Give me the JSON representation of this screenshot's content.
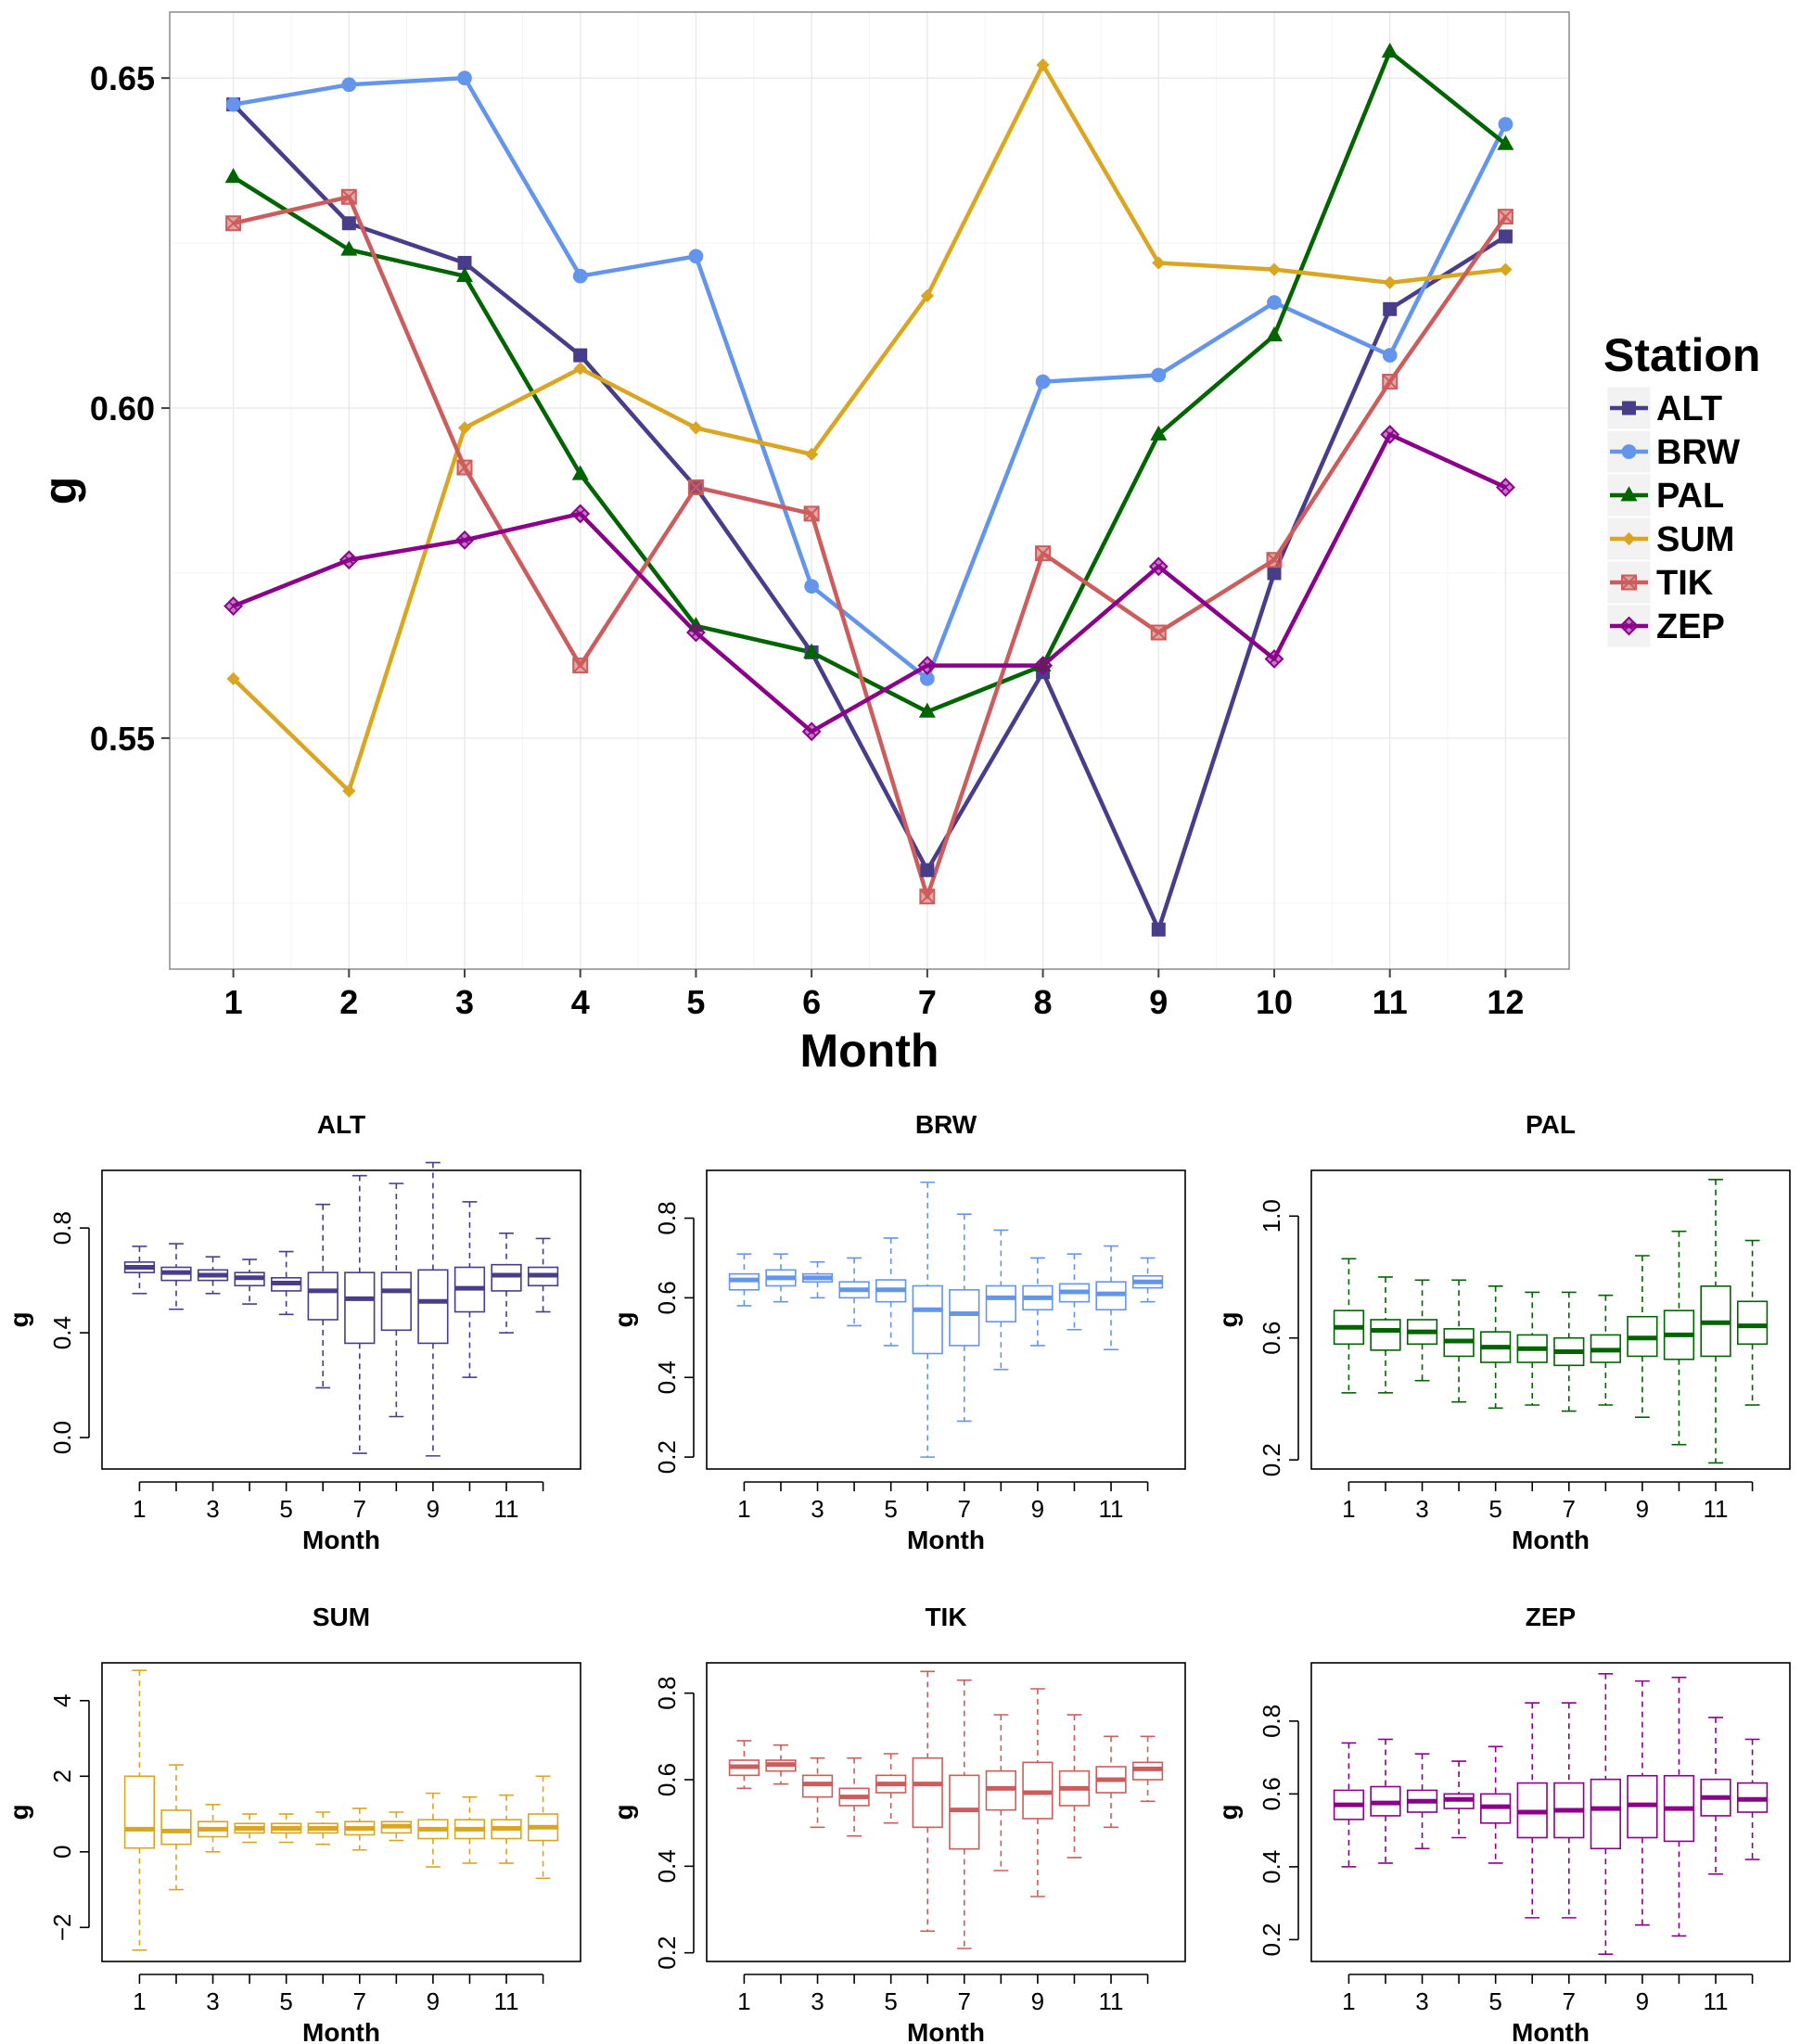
{
  "chart_data": [
    {
      "type": "line",
      "id": "main",
      "title": "",
      "xlabel": "Month",
      "ylabel": "g",
      "xlim": [
        0.45,
        12.55
      ],
      "ylim": [
        0.515,
        0.66
      ],
      "x_ticks": [
        1,
        2,
        3,
        4,
        5,
        6,
        7,
        8,
        9,
        10,
        11,
        12
      ],
      "y_ticks": [
        0.55,
        0.6,
        0.65
      ],
      "y_tick_labels": [
        "0.55",
        "0.60",
        "0.65"
      ],
      "grid": true,
      "legend": {
        "title": "Station",
        "position": "right"
      },
      "x": [
        1,
        2,
        3,
        4,
        5,
        6,
        7,
        8,
        9,
        10,
        11,
        12
      ],
      "series": [
        {
          "name": "ALT",
          "color": "#483d8b",
          "marker": "square",
          "values": [
            0.646,
            0.628,
            0.622,
            0.608,
            0.588,
            0.563,
            0.53,
            0.56,
            0.521,
            0.575,
            0.615,
            0.626
          ]
        },
        {
          "name": "BRW",
          "color": "#6495ed",
          "marker": "circle",
          "values": [
            0.646,
            0.649,
            0.65,
            0.62,
            0.623,
            0.573,
            0.559,
            0.604,
            0.605,
            0.616,
            0.608,
            0.643
          ]
        },
        {
          "name": "PAL",
          "color": "#006400",
          "marker": "triangle",
          "values": [
            0.635,
            0.624,
            0.62,
            0.59,
            0.567,
            0.563,
            0.554,
            0.561,
            0.596,
            0.611,
            0.654,
            0.64
          ]
        },
        {
          "name": "SUM",
          "color": "#daa520",
          "marker": "diamond",
          "values": [
            0.559,
            0.542,
            0.597,
            0.606,
            0.597,
            0.593,
            0.617,
            0.652,
            0.622,
            0.621,
            0.619,
            0.621
          ]
        },
        {
          "name": "TIK",
          "color": "#cd5c5c",
          "marker": "xsquare",
          "values": [
            0.628,
            0.632,
            0.591,
            0.561,
            0.588,
            0.584,
            0.526,
            0.578,
            0.566,
            0.577,
            0.604,
            0.629
          ]
        },
        {
          "name": "ZEP",
          "color": "#8b008b",
          "marker": "xdiamond",
          "values": [
            0.57,
            0.577,
            0.58,
            0.584,
            0.566,
            0.551,
            0.561,
            0.561,
            0.576,
            0.562,
            0.596,
            0.588
          ]
        }
      ]
    },
    {
      "type": "boxplot",
      "id": "ALT",
      "title": "ALT",
      "xlabel": "Month",
      "ylabel": "g",
      "color": "#483d8b",
      "ylim": [
        -0.12,
        1.02
      ],
      "y_ticks": [
        0.0,
        0.4,
        0.8
      ],
      "y_tick_labels": [
        "0.0",
        "0.4",
        "0.8"
      ],
      "x_tick_labels": [
        "1",
        "3",
        "5",
        "7",
        "9",
        "11"
      ],
      "boxes": [
        [
          0.55,
          0.63,
          0.65,
          0.67,
          0.73
        ],
        [
          0.49,
          0.6,
          0.63,
          0.65,
          0.74
        ],
        [
          0.55,
          0.6,
          0.62,
          0.64,
          0.69
        ],
        [
          0.51,
          0.58,
          0.61,
          0.63,
          0.68
        ],
        [
          0.47,
          0.56,
          0.59,
          0.61,
          0.71
        ],
        [
          0.19,
          0.45,
          0.56,
          0.63,
          0.89
        ],
        [
          -0.06,
          0.36,
          0.53,
          0.63,
          1.0
        ],
        [
          0.08,
          0.41,
          0.56,
          0.63,
          0.97
        ],
        [
          -0.07,
          0.36,
          0.52,
          0.64,
          1.05
        ],
        [
          0.23,
          0.48,
          0.57,
          0.65,
          0.9
        ],
        [
          0.4,
          0.56,
          0.62,
          0.66,
          0.78
        ],
        [
          0.48,
          0.58,
          0.62,
          0.65,
          0.76
        ]
      ]
    },
    {
      "type": "boxplot",
      "id": "BRW",
      "title": "BRW",
      "xlabel": "Month",
      "ylabel": "g",
      "color": "#6495ed",
      "ylim": [
        0.17,
        0.92
      ],
      "y_ticks": [
        0.2,
        0.4,
        0.6,
        0.8
      ],
      "y_tick_labels": [
        "0.2",
        "0.4",
        "0.6",
        "0.8"
      ],
      "x_tick_labels": [
        "1",
        "3",
        "5",
        "7",
        "9",
        "11"
      ],
      "boxes": [
        [
          0.58,
          0.62,
          0.645,
          0.66,
          0.71
        ],
        [
          0.59,
          0.63,
          0.65,
          0.67,
          0.71
        ],
        [
          0.6,
          0.64,
          0.65,
          0.66,
          0.69
        ],
        [
          0.53,
          0.6,
          0.62,
          0.64,
          0.7
        ],
        [
          0.48,
          0.59,
          0.62,
          0.645,
          0.75
        ],
        [
          0.2,
          0.46,
          0.57,
          0.63,
          0.89
        ],
        [
          0.29,
          0.48,
          0.56,
          0.62,
          0.81
        ],
        [
          0.42,
          0.54,
          0.6,
          0.63,
          0.77
        ],
        [
          0.48,
          0.57,
          0.6,
          0.63,
          0.7
        ],
        [
          0.52,
          0.59,
          0.615,
          0.635,
          0.71
        ],
        [
          0.47,
          0.57,
          0.61,
          0.64,
          0.73
        ],
        [
          0.59,
          0.625,
          0.64,
          0.655,
          0.7
        ]
      ]
    },
    {
      "type": "boxplot",
      "id": "PAL",
      "title": "PAL",
      "xlabel": "Month",
      "ylabel": "g",
      "color": "#006400",
      "ylim": [
        0.17,
        1.15
      ],
      "y_ticks": [
        0.2,
        0.6,
        1.0
      ],
      "y_tick_labels": [
        "0.2",
        "0.6",
        "1.0"
      ],
      "x_tick_labels": [
        "1",
        "3",
        "5",
        "7",
        "9",
        "11"
      ],
      "boxes": [
        [
          0.42,
          0.58,
          0.635,
          0.69,
          0.86
        ],
        [
          0.42,
          0.56,
          0.625,
          0.66,
          0.8
        ],
        [
          0.46,
          0.58,
          0.62,
          0.66,
          0.79
        ],
        [
          0.39,
          0.54,
          0.59,
          0.63,
          0.79
        ],
        [
          0.37,
          0.52,
          0.57,
          0.62,
          0.77
        ],
        [
          0.38,
          0.52,
          0.565,
          0.61,
          0.75
        ],
        [
          0.36,
          0.51,
          0.555,
          0.6,
          0.75
        ],
        [
          0.38,
          0.52,
          0.56,
          0.61,
          0.74
        ],
        [
          0.34,
          0.54,
          0.6,
          0.67,
          0.87
        ],
        [
          0.25,
          0.53,
          0.61,
          0.69,
          0.95
        ],
        [
          0.19,
          0.54,
          0.65,
          0.77,
          1.12
        ],
        [
          0.38,
          0.58,
          0.64,
          0.72,
          0.92
        ]
      ]
    },
    {
      "type": "boxplot",
      "id": "SUM",
      "title": "SUM",
      "xlabel": "Month",
      "ylabel": "g",
      "color": "#daa520",
      "ylim": [
        -2.9,
        5.0
      ],
      "y_ticks": [
        -2,
        0,
        2,
        4
      ],
      "y_tick_labels": [
        "−2",
        "0",
        "2",
        "4"
      ],
      "x_tick_labels": [
        "1",
        "3",
        "5",
        "7",
        "9",
        "11"
      ],
      "boxes": [
        [
          -2.6,
          0.1,
          0.6,
          2.0,
          4.8
        ],
        [
          -1.0,
          0.2,
          0.55,
          1.1,
          2.3
        ],
        [
          0.0,
          0.4,
          0.6,
          0.8,
          1.25
        ],
        [
          0.25,
          0.5,
          0.62,
          0.75,
          1.0
        ],
        [
          0.25,
          0.5,
          0.62,
          0.75,
          1.0
        ],
        [
          0.2,
          0.5,
          0.62,
          0.75,
          1.05
        ],
        [
          0.05,
          0.45,
          0.62,
          0.8,
          1.15
        ],
        [
          0.3,
          0.5,
          0.68,
          0.8,
          1.05
        ],
        [
          -0.4,
          0.35,
          0.6,
          0.85,
          1.55
        ],
        [
          -0.3,
          0.35,
          0.6,
          0.85,
          1.45
        ],
        [
          -0.3,
          0.35,
          0.62,
          0.85,
          1.5
        ],
        [
          -0.7,
          0.3,
          0.65,
          1.0,
          2.0
        ]
      ]
    },
    {
      "type": "boxplot",
      "id": "TIK",
      "title": "TIK",
      "xlabel": "Month",
      "ylabel": "g",
      "color": "#cd5c5c",
      "ylim": [
        0.18,
        0.87
      ],
      "y_ticks": [
        0.2,
        0.4,
        0.6,
        0.8
      ],
      "y_tick_labels": [
        "0.2",
        "0.4",
        "0.6",
        "0.8"
      ],
      "x_tick_labels": [
        "1",
        "3",
        "5",
        "7",
        "9",
        "11"
      ],
      "boxes": [
        [
          0.58,
          0.61,
          0.63,
          0.645,
          0.69
        ],
        [
          0.59,
          0.62,
          0.635,
          0.645,
          0.68
        ],
        [
          0.49,
          0.56,
          0.59,
          0.61,
          0.65
        ],
        [
          0.47,
          0.54,
          0.56,
          0.58,
          0.65
        ],
        [
          0.5,
          0.57,
          0.59,
          0.61,
          0.66
        ],
        [
          0.25,
          0.49,
          0.59,
          0.65,
          0.85
        ],
        [
          0.21,
          0.44,
          0.53,
          0.61,
          0.83
        ],
        [
          0.39,
          0.53,
          0.58,
          0.62,
          0.75
        ],
        [
          0.33,
          0.51,
          0.57,
          0.64,
          0.81
        ],
        [
          0.42,
          0.54,
          0.58,
          0.62,
          0.75
        ],
        [
          0.49,
          0.57,
          0.6,
          0.63,
          0.7
        ],
        [
          0.55,
          0.6,
          0.625,
          0.64,
          0.7
        ]
      ]
    },
    {
      "type": "boxplot",
      "id": "ZEP",
      "title": "ZEP",
      "xlabel": "Month",
      "ylabel": "g",
      "color": "#8b008b",
      "ylim": [
        0.14,
        0.96
      ],
      "y_ticks": [
        0.2,
        0.4,
        0.6,
        0.8
      ],
      "y_tick_labels": [
        "0.2",
        "0.4",
        "0.6",
        "0.8"
      ],
      "x_tick_labels": [
        "1",
        "3",
        "5",
        "7",
        "9",
        "11"
      ],
      "boxes": [
        [
          0.4,
          0.53,
          0.57,
          0.61,
          0.74
        ],
        [
          0.41,
          0.54,
          0.575,
          0.62,
          0.75
        ],
        [
          0.45,
          0.55,
          0.58,
          0.61,
          0.71
        ],
        [
          0.48,
          0.56,
          0.585,
          0.6,
          0.69
        ],
        [
          0.41,
          0.52,
          0.565,
          0.6,
          0.73
        ],
        [
          0.26,
          0.48,
          0.55,
          0.63,
          0.85
        ],
        [
          0.26,
          0.48,
          0.555,
          0.63,
          0.85
        ],
        [
          0.16,
          0.45,
          0.56,
          0.64,
          0.93
        ],
        [
          0.24,
          0.48,
          0.57,
          0.65,
          0.91
        ],
        [
          0.21,
          0.47,
          0.56,
          0.65,
          0.92
        ],
        [
          0.38,
          0.54,
          0.59,
          0.64,
          0.81
        ],
        [
          0.42,
          0.55,
          0.585,
          0.63,
          0.75
        ]
      ]
    }
  ]
}
